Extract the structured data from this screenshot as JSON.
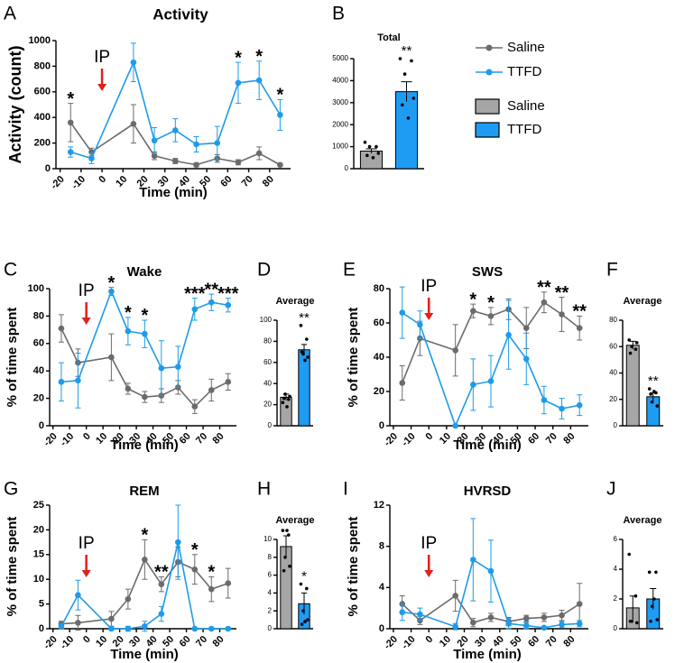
{
  "chart_data": [
    {
      "type": "line",
      "panel": "A",
      "title": "Activity",
      "ylabel": "Activity (count)",
      "xlabel": "Time (min)",
      "x": [
        -15,
        -5,
        15,
        25,
        35,
        45,
        55,
        65,
        75,
        85
      ],
      "series": [
        {
          "name": "Saline",
          "color": "#6b6b6b",
          "values": [
            360,
            130,
            350,
            100,
            60,
            30,
            80,
            50,
            120,
            30
          ],
          "errors": [
            150,
            30,
            150,
            30,
            20,
            15,
            30,
            20,
            50,
            10
          ]
        },
        {
          "name": "TTFD",
          "color": "#1e9be9",
          "values": [
            130,
            80,
            830,
            220,
            300,
            190,
            200,
            670,
            690,
            420
          ],
          "errors": [
            40,
            40,
            150,
            100,
            90,
            60,
            130,
            160,
            150,
            120
          ]
        }
      ],
      "xlim": [
        -22,
        90
      ],
      "xticks": [
        -20,
        -10,
        0,
        10,
        20,
        30,
        40,
        50,
        60,
        70,
        80
      ],
      "ylim": [
        0,
        1000
      ],
      "yticks": [
        0,
        200,
        400,
        600,
        800,
        1000
      ],
      "ip": {
        "x": 0,
        "label": "IP"
      },
      "significance": [
        {
          "x": -15,
          "text": "*"
        },
        {
          "x": 65,
          "text": "*"
        },
        {
          "x": 75,
          "text": "*"
        },
        {
          "x": 85,
          "text": "*"
        }
      ]
    },
    {
      "type": "bar",
      "panel": "B",
      "title": "Total",
      "ylim": [
        0,
        5000
      ],
      "yticks": [
        0,
        1000,
        2000,
        3000,
        4000,
        5000
      ],
      "series": [
        {
          "name": "Saline",
          "color": "#a6a6a6",
          "value": 800,
          "error": 100,
          "points": [
            1200,
            1000,
            1000,
            700,
            600,
            500
          ]
        },
        {
          "name": "TTFD",
          "color": "#1e9cf4",
          "value": 3500,
          "error": 450,
          "points": [
            5000,
            4900,
            4300,
            3200,
            2900,
            2300
          ],
          "significance": "**"
        }
      ]
    },
    {
      "type": "line",
      "panel": "C",
      "title": "Wake",
      "ylabel": "% of time spent",
      "xlabel": "Time (min)",
      "x": [
        -15,
        -5,
        15,
        25,
        35,
        45,
        55,
        65,
        75,
        85
      ],
      "series": [
        {
          "color": "#6b6b6b",
          "values": [
            71,
            46,
            50,
            27,
            21,
            22,
            28,
            14,
            26,
            32
          ],
          "errors": [
            10,
            10,
            17,
            4,
            4,
            5,
            5,
            5,
            8,
            6
          ]
        },
        {
          "color": "#1e9be9",
          "values": [
            32,
            33,
            98,
            69,
            67,
            42,
            43,
            85,
            90,
            88
          ],
          "errors": [
            14,
            20,
            3,
            10,
            10,
            20,
            15,
            8,
            6,
            5
          ]
        }
      ],
      "xlim": [
        -22,
        90
      ],
      "xticks": [
        -20,
        -10,
        0,
        10,
        20,
        30,
        40,
        50,
        60,
        70,
        80
      ],
      "ylim": [
        0,
        100
      ],
      "yticks": [
        0,
        20,
        40,
        60,
        80,
        100
      ],
      "ip": {
        "x": 0,
        "label": "IP"
      },
      "significance": [
        {
          "x": 15,
          "text": "*"
        },
        {
          "x": 25,
          "text": "*"
        },
        {
          "x": 35,
          "text": "*"
        },
        {
          "x": 65,
          "text": "***"
        },
        {
          "x": 75,
          "text": "**"
        },
        {
          "x": 85,
          "text": "***"
        }
      ]
    },
    {
      "type": "bar",
      "panel": "D",
      "title": "Average",
      "ylim": [
        0,
        100
      ],
      "yticks": [
        0,
        20,
        40,
        60,
        80,
        100
      ],
      "series": [
        {
          "color": "#a6a6a6",
          "value": 27,
          "error": 3,
          "points": [
            22,
            25,
            30,
            28,
            26,
            18
          ]
        },
        {
          "color": "#1e9cf4",
          "value": 72,
          "error": 5,
          "points": [
            95,
            82,
            68,
            65,
            70,
            62
          ],
          "significance": "**"
        }
      ]
    },
    {
      "type": "line",
      "panel": "E",
      "title": "SWS",
      "ylabel": "% of time spent",
      "xlabel": "Time (min)",
      "x": [
        -15,
        -5,
        15,
        25,
        35,
        45,
        55,
        65,
        75,
        85
      ],
      "series": [
        {
          "color": "#6b6b6b",
          "values": [
            25,
            51,
            44,
            67,
            64,
            68,
            57,
            72,
            65,
            57
          ],
          "errors": [
            10,
            10,
            15,
            4,
            5,
            6,
            12,
            6,
            10,
            7
          ]
        },
        {
          "color": "#1e9be9",
          "values": [
            66,
            59,
            0,
            24,
            26,
            53,
            39,
            15,
            10,
            12
          ],
          "errors": [
            15,
            8,
            0,
            15,
            15,
            20,
            15,
            8,
            6,
            6
          ]
        }
      ],
      "xlim": [
        -22,
        90
      ],
      "xticks": [
        -20,
        -10,
        0,
        10,
        20,
        30,
        40,
        50,
        60,
        70,
        80
      ],
      "ylim": [
        0,
        80
      ],
      "yticks": [
        0,
        20,
        40,
        60,
        80
      ],
      "ip": {
        "x": 0,
        "label": "IP"
      },
      "significance": [
        {
          "x": 25,
          "text": "*"
        },
        {
          "x": 35,
          "text": "*"
        },
        {
          "x": 65,
          "text": "**"
        },
        {
          "x": 75,
          "text": "**"
        },
        {
          "x": 85,
          "text": "**"
        }
      ]
    },
    {
      "type": "bar",
      "panel": "F",
      "title": "Average",
      "ylim": [
        0,
        80
      ],
      "yticks": [
        0,
        20,
        40,
        60,
        80
      ],
      "series": [
        {
          "color": "#a6a6a6",
          "value": 61,
          "error": 3,
          "points": [
            65,
            58,
            60,
            63,
            55
          ]
        },
        {
          "color": "#1e9cf4",
          "value": 22,
          "error": 3,
          "points": [
            28,
            25,
            18,
            15,
            24,
            26
          ],
          "significance": "**"
        }
      ]
    },
    {
      "type": "line",
      "panel": "G",
      "title": "REM",
      "ylabel": "% of time spent",
      "xlabel": "Time (min)",
      "x": [
        -15,
        -5,
        15,
        25,
        35,
        45,
        55,
        65,
        75,
        85
      ],
      "series": [
        {
          "color": "#6b6b6b",
          "values": [
            1,
            1.2,
            2,
            6,
            14,
            9,
            13.5,
            12,
            8,
            9.2
          ],
          "errors": [
            0.5,
            1.5,
            1.5,
            2,
            4,
            1.5,
            3,
            3,
            2.5,
            3
          ]
        },
        {
          "color": "#1e9be9",
          "values": [
            0.5,
            6.8,
            0,
            0,
            0.5,
            3,
            17.5,
            0,
            0,
            0
          ],
          "errors": [
            0.5,
            3,
            0.3,
            0.5,
            1,
            1.5,
            7.5,
            0,
            0,
            0.2
          ]
        }
      ],
      "xlim": [
        -22,
        90
      ],
      "xticks": [
        -20,
        -10,
        0,
        10,
        20,
        30,
        40,
        50,
        60,
        70,
        80
      ],
      "ylim": [
        0,
        25
      ],
      "yticks": [
        0,
        5,
        10,
        15,
        20,
        25
      ],
      "ip": {
        "x": 0,
        "label": "IP"
      },
      "significance": [
        {
          "x": 35,
          "text": "*"
        },
        {
          "x": 45,
          "text": "**"
        },
        {
          "x": 65,
          "text": "*"
        },
        {
          "x": 75,
          "text": "*"
        }
      ]
    },
    {
      "type": "bar",
      "panel": "H",
      "title": "Average",
      "ylim": [
        0,
        10
      ],
      "yticks": [
        0,
        2,
        4,
        6,
        8,
        10
      ],
      "series": [
        {
          "color": "#a6a6a6",
          "value": 9.2,
          "error": 1.2,
          "points": [
            11,
            10.5,
            8,
            7,
            6.5,
            11
          ]
        },
        {
          "color": "#1e9cf4",
          "value": 2.8,
          "error": 1.2,
          "points": [
            5,
            4.5,
            2,
            1,
            0.5,
            0.8
          ],
          "significance": "*"
        }
      ]
    },
    {
      "type": "line",
      "panel": "I",
      "title": "HVRSD",
      "ylabel": "% of time spent",
      "xlabel": "Time (min)",
      "x": [
        -15,
        -5,
        15,
        25,
        35,
        45,
        55,
        65,
        75,
        85
      ],
      "series": [
        {
          "color": "#6b6b6b",
          "values": [
            2.4,
            0.8,
            3.2,
            0.6,
            1.1,
            0.7,
            1,
            1.1,
            1.3,
            2.4
          ],
          "errors": [
            0.8,
            0.4,
            1.5,
            0.4,
            0.4,
            0.4,
            0.3,
            0.4,
            0.5,
            2
          ]
        },
        {
          "color": "#1e9be9",
          "values": [
            1.6,
            1.4,
            0.2,
            6.7,
            5.6,
            0.5,
            0.3,
            0.1,
            0.4,
            0.5
          ],
          "errors": [
            0.8,
            0.6,
            0.3,
            4,
            3,
            0.5,
            0.3,
            0.1,
            0.3,
            0.3
          ]
        }
      ],
      "xlim": [
        -22,
        90
      ],
      "xticks": [
        -20,
        -10,
        0,
        10,
        20,
        30,
        40,
        50,
        60,
        70,
        80
      ],
      "ylim": [
        0,
        12
      ],
      "yticks": [
        0,
        4,
        8,
        12
      ],
      "ip": {
        "x": 0,
        "label": "IP"
      },
      "significance": []
    },
    {
      "type": "bar",
      "panel": "J",
      "title": "Average",
      "ylim": [
        0,
        6
      ],
      "yticks": [
        0,
        2,
        4,
        6
      ],
      "series": [
        {
          "color": "#a6a6a6",
          "value": 1.4,
          "error": 0.8,
          "points": [
            5,
            2.2,
            0.5,
            0.4,
            0.5
          ]
        },
        {
          "color": "#1e9cf4",
          "value": 2.0,
          "error": 0.7,
          "points": [
            3.8,
            3.8,
            1.5,
            0.6,
            0.5,
            2
          ]
        }
      ]
    }
  ]
}
